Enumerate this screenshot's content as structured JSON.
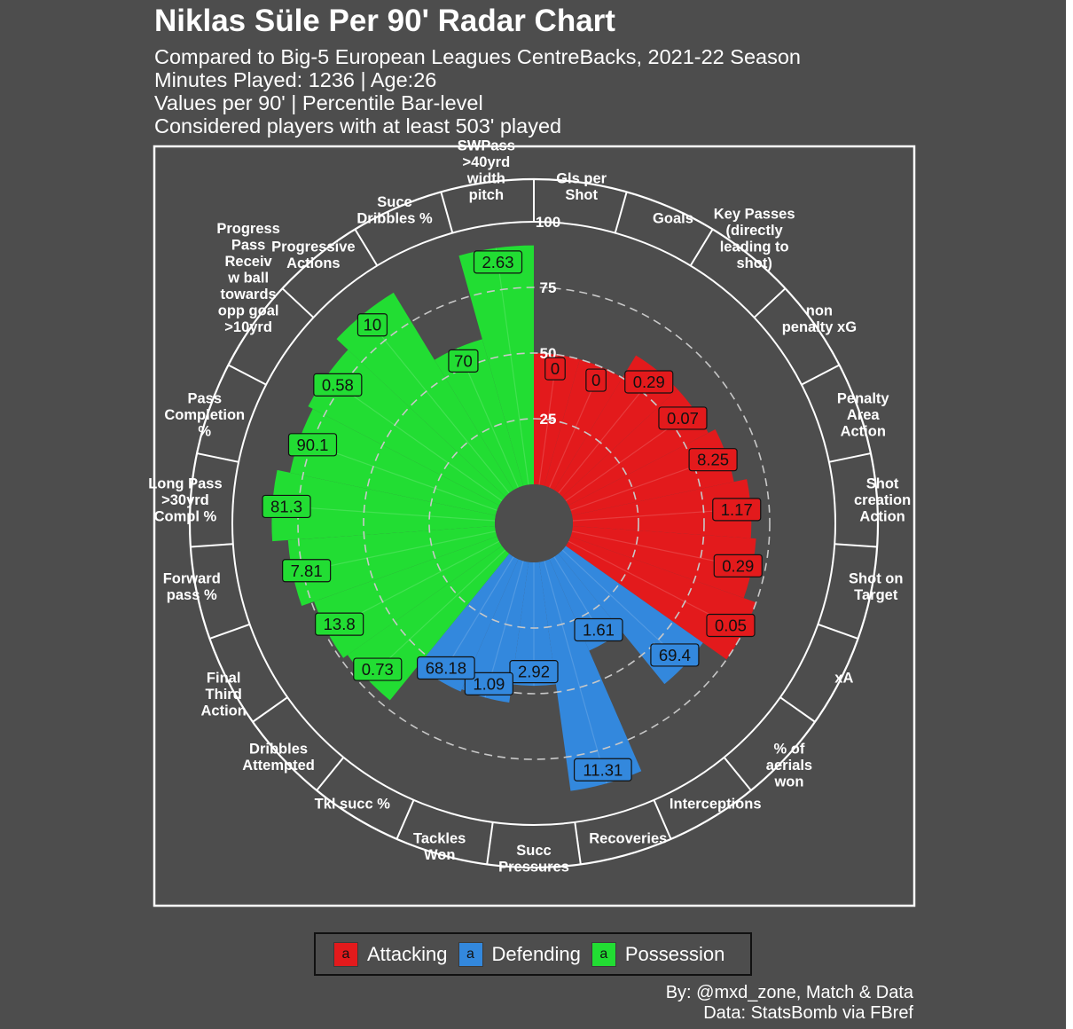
{
  "title": "Niklas Süle Per 90' Radar Chart",
  "subtitle_lines": [
    "Compared to Big-5 European Leagues CentreBacks, 2021-22 Season",
    "Minutes Played: 1236 | Age:26",
    "Values per 90' | Percentile Bar-level",
    "Considered players with at least 503' played"
  ],
  "caption_lines": [
    "By: @mxd_zone, Match & Data",
    "Data: StatsBomb via FBref"
  ],
  "legend": [
    {
      "key": "a",
      "label": "Attacking",
      "color": "#e31a1c"
    },
    {
      "key": "a",
      "label": "Defending",
      "color": "#3388dd"
    },
    {
      "key": "a",
      "label": "Possession",
      "color": "#22dd33"
    }
  ],
  "chart_data": {
    "type": "radial-bar",
    "radial_ticks": [
      "25",
      "50",
      "75",
      "100"
    ],
    "rlim": [
      0,
      100
    ],
    "categories": [
      {
        "label": [
          "Gls per",
          "Shot"
        ],
        "group": "Attacking",
        "percentile": 50,
        "value": "0"
      },
      {
        "label": [
          "Goals"
        ],
        "group": "Attacking",
        "percentile": 50,
        "value": "0"
      },
      {
        "label": [
          "Key Passes",
          "(directly",
          "leading to",
          "shot)"
        ],
        "group": "Attacking",
        "percentile": 60,
        "value": "0.29"
      },
      {
        "label": [
          "non",
          "penalty xG"
        ],
        "group": "Attacking",
        "percentile": 60,
        "value": "0.07"
      },
      {
        "label": [
          "Penalty",
          "Area",
          "Action"
        ],
        "group": "Attacking",
        "percentile": 63,
        "value": "8.25"
      },
      {
        "label": [
          "Shot",
          "creation",
          "Action"
        ],
        "group": "Attacking",
        "percentile": 68,
        "value": "1.17"
      },
      {
        "label": [
          "Shot on",
          "Target"
        ],
        "group": "Attacking",
        "percentile": 70,
        "value": "0.29"
      },
      {
        "label": [
          "xA"
        ],
        "group": "Attacking",
        "percentile": 75,
        "value": "0.05"
      },
      {
        "label": [
          "% of",
          "aerials",
          "won"
        ],
        "group": "Defending",
        "percentile": 64,
        "value": "69.4"
      },
      {
        "label": [
          "Interceptions"
        ],
        "group": "Defending",
        "percentile": 38,
        "value": "1.61"
      },
      {
        "label": [
          "Recoveries"
        ],
        "group": "Defending",
        "percentile": 88,
        "value": "11.31"
      },
      {
        "label": [
          "Succ",
          "Pressures"
        ],
        "group": "Defending",
        "percentile": 47,
        "value": "2.92"
      },
      {
        "label": [
          "Tackles",
          "Won"
        ],
        "group": "Defending",
        "percentile": 54,
        "value": "1.09"
      },
      {
        "label": [
          "Tkl succ %"
        ],
        "group": "Defending",
        "percentile": 55,
        "value": "68.18"
      },
      {
        "label": [
          "Dribbles",
          "Attempted"
        ],
        "group": "Possession",
        "percentile": 72,
        "value": "0.73"
      },
      {
        "label": [
          "Final",
          "Third",
          "Action"
        ],
        "group": "Possession",
        "percentile": 74,
        "value": "13.8"
      },
      {
        "label": [
          "Forward",
          "pass %"
        ],
        "group": "Possession",
        "percentile": 79,
        "value": "7.81"
      },
      {
        "label": [
          "Long Pass",
          ">30yrd",
          "Compl %"
        ],
        "group": "Possession",
        "percentile": 85,
        "value": "81.3"
      },
      {
        "label": [
          "Pass",
          "Completion",
          "%"
        ],
        "group": "Possession",
        "percentile": 80,
        "value": "90.1"
      },
      {
        "label": [
          "Progress",
          "Pass",
          "Receiv",
          "w ball",
          "towards",
          "opp goal",
          ">10yrd"
        ],
        "group": "Possession",
        "percentile": 82,
        "value": "0.58"
      },
      {
        "label": [
          "Progressive",
          "Actions"
        ],
        "group": "Possession",
        "percentile": 88,
        "value": "10"
      },
      {
        "label": [
          "Succ",
          "Dribbles %"
        ],
        "group": "Possession",
        "percentile": 58,
        "value": "70"
      },
      {
        "label": [
          "SWPass",
          ">40yrd",
          "width",
          "pitch"
        ],
        "group": "Possession",
        "percentile": 91,
        "value": "2.63"
      }
    ]
  }
}
